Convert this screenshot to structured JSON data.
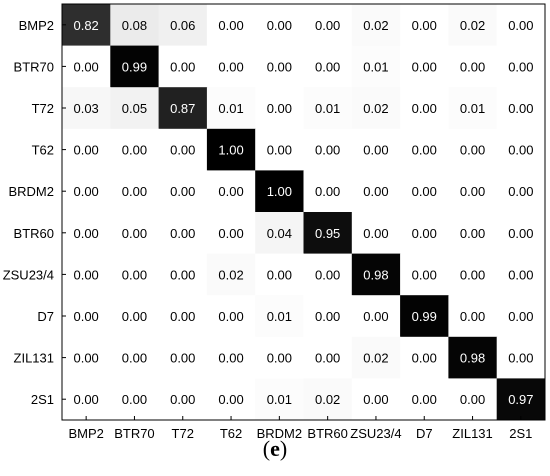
{
  "chart_data": {
    "type": "heatmap",
    "row_labels": [
      "BMP2",
      "BTR70",
      "T72",
      "T62",
      "BRDM2",
      "BTR60",
      "ZSU23/4",
      "D7",
      "ZIL131",
      "2S1"
    ],
    "col_labels": [
      "BMP2",
      "BTR70",
      "T72",
      "T62",
      "BRDM2",
      "BTR60",
      "ZSU23/4",
      "D7",
      "ZIL131",
      "2S1"
    ],
    "matrix": [
      [
        "0.82",
        "0.08",
        "0.06",
        "0.00",
        "0.00",
        "0.00",
        "0.02",
        "0.00",
        "0.02",
        "0.00"
      ],
      [
        "0.00",
        "0.99",
        "0.00",
        "0.00",
        "0.00",
        "0.00",
        "0.01",
        "0.00",
        "0.00",
        "0.00"
      ],
      [
        "0.03",
        "0.05",
        "0.87",
        "0.01",
        "0.00",
        "0.01",
        "0.02",
        "0.00",
        "0.01",
        "0.00"
      ],
      [
        "0.00",
        "0.00",
        "0.00",
        "1.00",
        "0.00",
        "0.00",
        "0.00",
        "0.00",
        "0.00",
        "0.00"
      ],
      [
        "0.00",
        "0.00",
        "0.00",
        "0.00",
        "1.00",
        "0.00",
        "0.00",
        "0.00",
        "0.00",
        "0.00"
      ],
      [
        "0.00",
        "0.00",
        "0.00",
        "0.00",
        "0.04",
        "0.95",
        "0.00",
        "0.00",
        "0.00",
        "0.00"
      ],
      [
        "0.00",
        "0.00",
        "0.00",
        "0.02",
        "0.00",
        "0.00",
        "0.98",
        "0.00",
        "0.00",
        "0.00"
      ],
      [
        "0.00",
        "0.00",
        "0.00",
        "0.00",
        "0.01",
        "0.00",
        "0.00",
        "0.99",
        "0.00",
        "0.00"
      ],
      [
        "0.00",
        "0.00",
        "0.00",
        "0.00",
        "0.00",
        "0.00",
        "0.02",
        "0.00",
        "0.98",
        "0.00"
      ],
      [
        "0.00",
        "0.00",
        "0.00",
        "0.00",
        "0.01",
        "0.02",
        "0.00",
        "0.00",
        "0.00",
        "0.97"
      ]
    ],
    "colormap": "gray_reversed",
    "low_color": "#ffffff",
    "high_color": "#000000",
    "grid": false
  },
  "panel_label": "(e)"
}
